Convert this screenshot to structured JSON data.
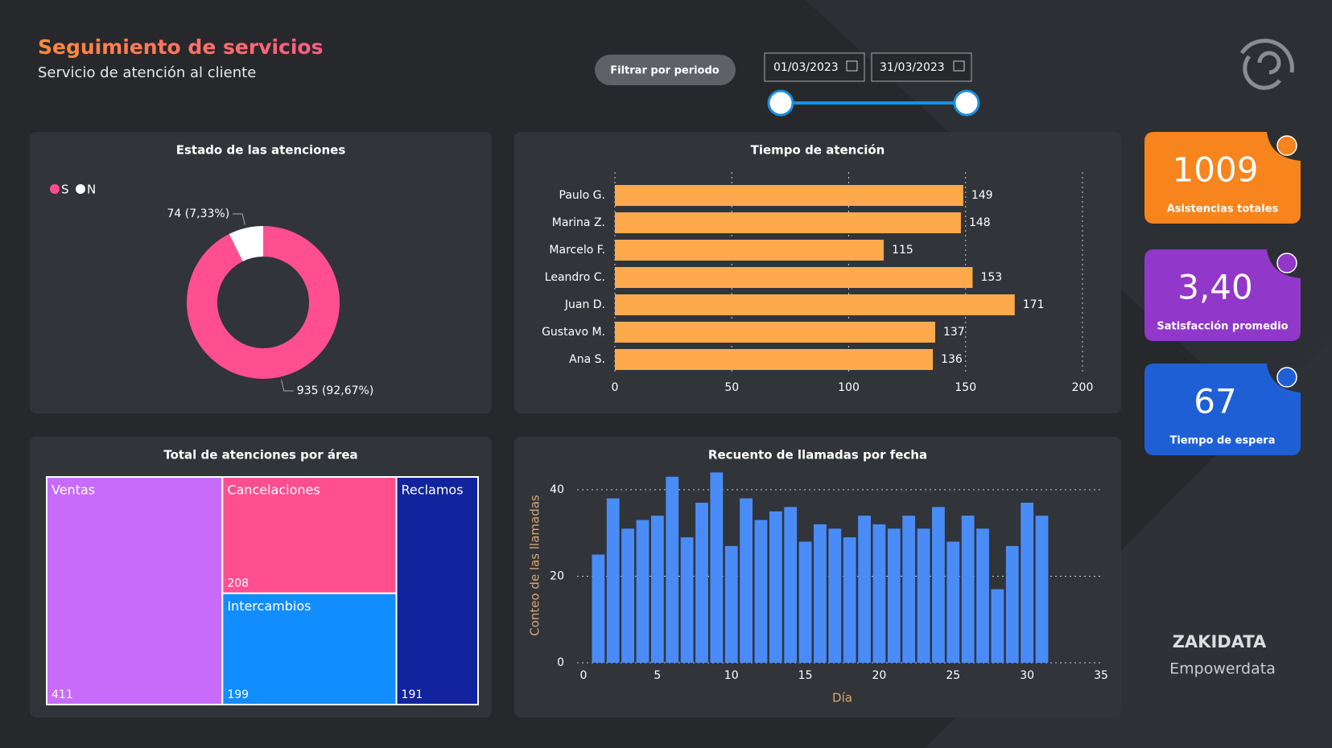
{
  "header": {
    "title": "Seguimiento de servicios",
    "subtitle": "Servicio de atención al cliente"
  },
  "filter": {
    "button": "Filtrar por periodo",
    "start": "01/03/2023",
    "end": "31/03/2023"
  },
  "kpis": [
    {
      "value": "1009",
      "label": "Asistencias totales",
      "color": "#f7841d"
    },
    {
      "value": "3,40",
      "label": "Satisfacción promedio",
      "color": "#9137c9"
    },
    {
      "value": "67",
      "label": "Tiempo de espera",
      "color": "#1f5fd6"
    }
  ],
  "brand": {
    "name": "ZAKIDATA",
    "tagline": "Empowerdata"
  },
  "chart_data": [
    {
      "type": "pie",
      "title": "Estado de las atenciones",
      "categories": [
        "S",
        "N"
      ],
      "values": [
        935,
        74
      ],
      "value_labels": [
        "935 (92,67%)",
        "74 (7,33%)"
      ],
      "colors": [
        "#ff4f8f",
        "#ffffff"
      ],
      "legend": "top-left"
    },
    {
      "type": "bar",
      "orientation": "horizontal",
      "title": "Tiempo de atención",
      "categories": [
        "Paulo G.",
        "Marina Z.",
        "Marcelo F.",
        "Leandro C.",
        "Juan D.",
        "Gustavo M.",
        "Ana S."
      ],
      "values": [
        149,
        148,
        115,
        153,
        171,
        137,
        136
      ],
      "color": "#ffa94d",
      "xlim": [
        0,
        200
      ],
      "xticks": [
        0,
        50,
        100,
        150,
        200
      ],
      "grid": true
    },
    {
      "type": "treemap",
      "title": "Total de atenciones por área",
      "categories": [
        "Ventas",
        "Cancelaciones",
        "Intercambios",
        "Reclamos"
      ],
      "values": [
        411,
        208,
        199,
        191
      ],
      "colors": [
        "#c86bfa",
        "#ff4f8f",
        "#118dff",
        "#12239e"
      ]
    },
    {
      "type": "bar",
      "orientation": "vertical",
      "title": "Recuento de llamadas por fecha",
      "x": [
        1,
        2,
        3,
        4,
        5,
        6,
        7,
        8,
        9,
        10,
        11,
        12,
        13,
        14,
        15,
        16,
        17,
        18,
        19,
        20,
        21,
        22,
        23,
        24,
        25,
        26,
        27,
        28,
        29,
        30,
        31
      ],
      "values": [
        25,
        38,
        31,
        33,
        34,
        43,
        29,
        37,
        44,
        27,
        38,
        33,
        35,
        36,
        28,
        32,
        31,
        29,
        34,
        32,
        31,
        34,
        31,
        36,
        28,
        34,
        31,
        17,
        27,
        37,
        34
      ],
      "color": "#4a8cf7",
      "xlim": [
        0,
        35
      ],
      "xticks": [
        0,
        5,
        10,
        15,
        20,
        25,
        30,
        35
      ],
      "ylim": [
        0,
        45
      ],
      "yticks": [
        0,
        20,
        40
      ],
      "grid": true,
      "x_label": "Día",
      "y_label": "Conteo de las llamadas"
    }
  ]
}
